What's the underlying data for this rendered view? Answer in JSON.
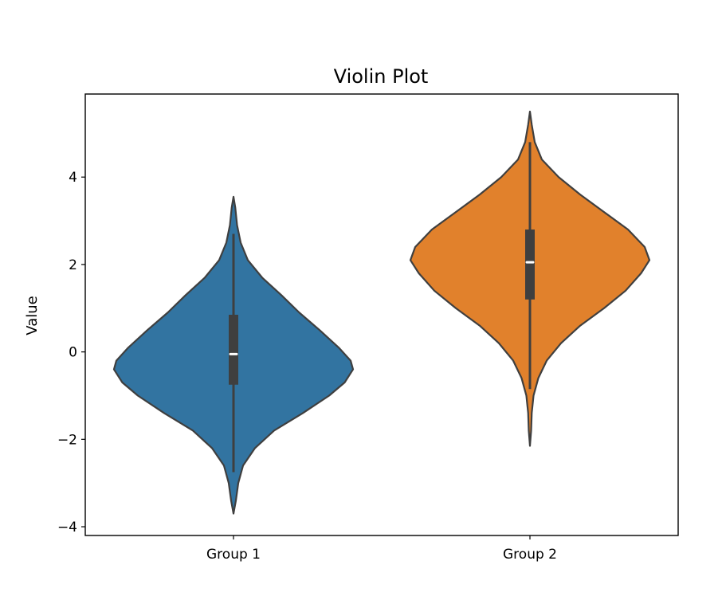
{
  "chart_data": {
    "type": "violin",
    "title": "Violin Plot",
    "xlabel": "",
    "ylabel": "Value",
    "ylim": [
      -4.2,
      5.9
    ],
    "yticks": [
      -4,
      -2,
      0,
      2,
      4
    ],
    "ytick_labels": [
      "−4",
      "−2",
      "0",
      "2",
      "4"
    ],
    "categories": [
      "Group 1",
      "Group 2"
    ],
    "grid": false,
    "groups": [
      {
        "label": "Group 1",
        "color": "#3274a1",
        "min": -3.7,
        "q1": -0.75,
        "median": -0.05,
        "q3": 0.85,
        "max": 3.55,
        "whisker_low": -2.75,
        "whisker_high": 2.7,
        "density": [
          [
            -3.7,
            0.0
          ],
          [
            -3.4,
            0.02
          ],
          [
            -3.0,
            0.04
          ],
          [
            -2.6,
            0.08
          ],
          [
            -2.2,
            0.18
          ],
          [
            -1.8,
            0.34
          ],
          [
            -1.4,
            0.58
          ],
          [
            -1.0,
            0.8
          ],
          [
            -0.7,
            0.93
          ],
          [
            -0.4,
            1.0
          ],
          [
            -0.2,
            0.98
          ],
          [
            0.1,
            0.88
          ],
          [
            0.5,
            0.72
          ],
          [
            0.9,
            0.55
          ],
          [
            1.3,
            0.4
          ],
          [
            1.7,
            0.24
          ],
          [
            2.1,
            0.12
          ],
          [
            2.5,
            0.06
          ],
          [
            2.9,
            0.03
          ],
          [
            3.3,
            0.015
          ],
          [
            3.55,
            0.0
          ]
        ]
      },
      {
        "label": "Group 2",
        "color": "#e1812c",
        "min": -2.15,
        "q1": 1.2,
        "median": 2.05,
        "q3": 2.8,
        "max": 5.5,
        "whisker_low": -0.85,
        "whisker_high": 4.8,
        "density": [
          [
            -2.15,
            0.0
          ],
          [
            -1.8,
            0.01
          ],
          [
            -1.4,
            0.015
          ],
          [
            -1.0,
            0.03
          ],
          [
            -0.6,
            0.07
          ],
          [
            -0.2,
            0.14
          ],
          [
            0.2,
            0.26
          ],
          [
            0.6,
            0.42
          ],
          [
            1.0,
            0.62
          ],
          [
            1.4,
            0.8
          ],
          [
            1.8,
            0.93
          ],
          [
            2.1,
            1.0
          ],
          [
            2.4,
            0.96
          ],
          [
            2.8,
            0.82
          ],
          [
            3.2,
            0.62
          ],
          [
            3.6,
            0.42
          ],
          [
            4.0,
            0.24
          ],
          [
            4.4,
            0.1
          ],
          [
            4.8,
            0.04
          ],
          [
            5.2,
            0.015
          ],
          [
            5.5,
            0.0
          ]
        ]
      }
    ]
  }
}
